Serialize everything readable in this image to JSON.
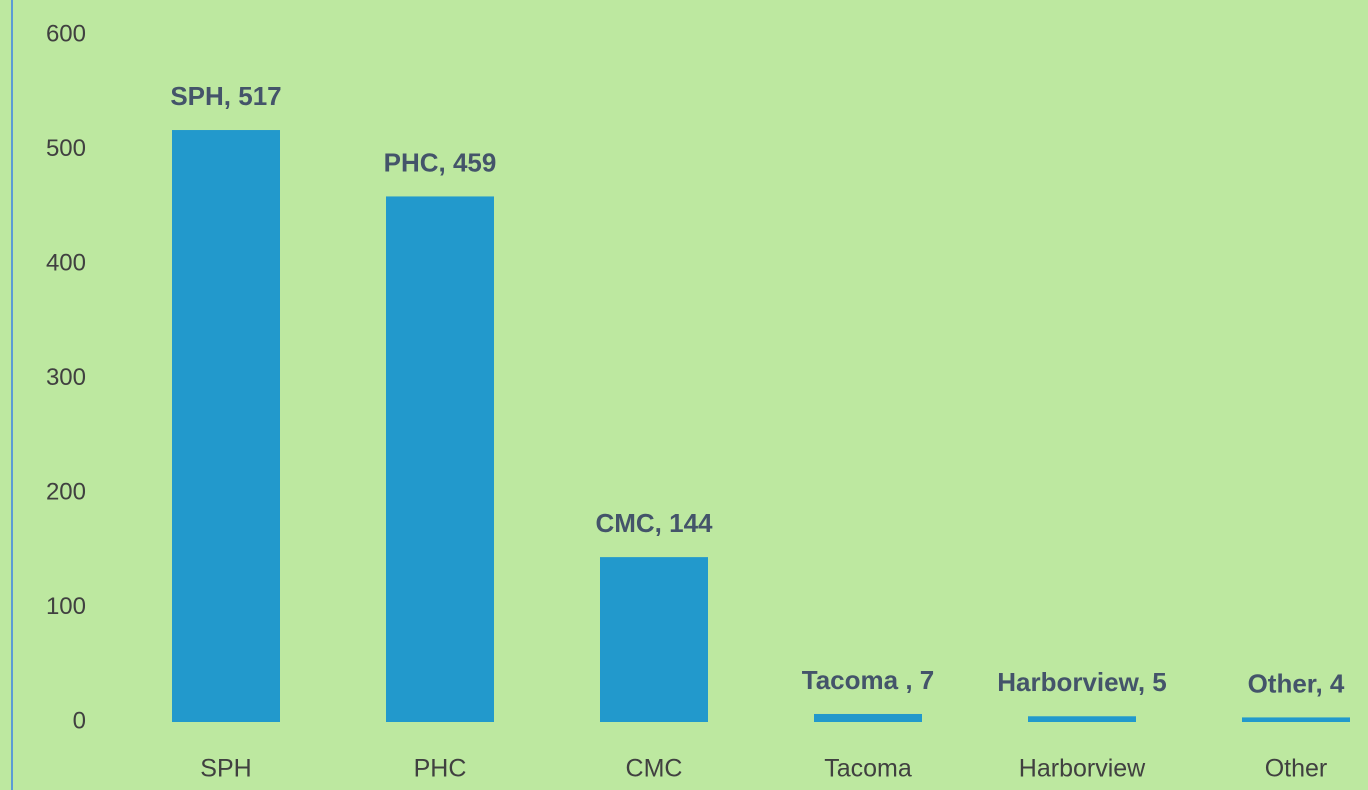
{
  "chart_data": {
    "type": "bar",
    "categories": [
      "SPH",
      "PHC",
      "CMC",
      "Tacoma",
      "Harborview",
      "Other"
    ],
    "values": [
      517,
      459,
      144,
      7,
      5,
      4
    ],
    "value_labels": [
      "SPH, 517",
      "PHC, 459",
      "CMC, 144",
      "Tacoma , 7",
      "Harborview, 5",
      "Other, 4"
    ],
    "color": "#2299cc",
    "ylim": [
      0,
      600
    ],
    "yticks": [
      0,
      100,
      200,
      300,
      400,
      500,
      600
    ],
    "grid": false
  }
}
